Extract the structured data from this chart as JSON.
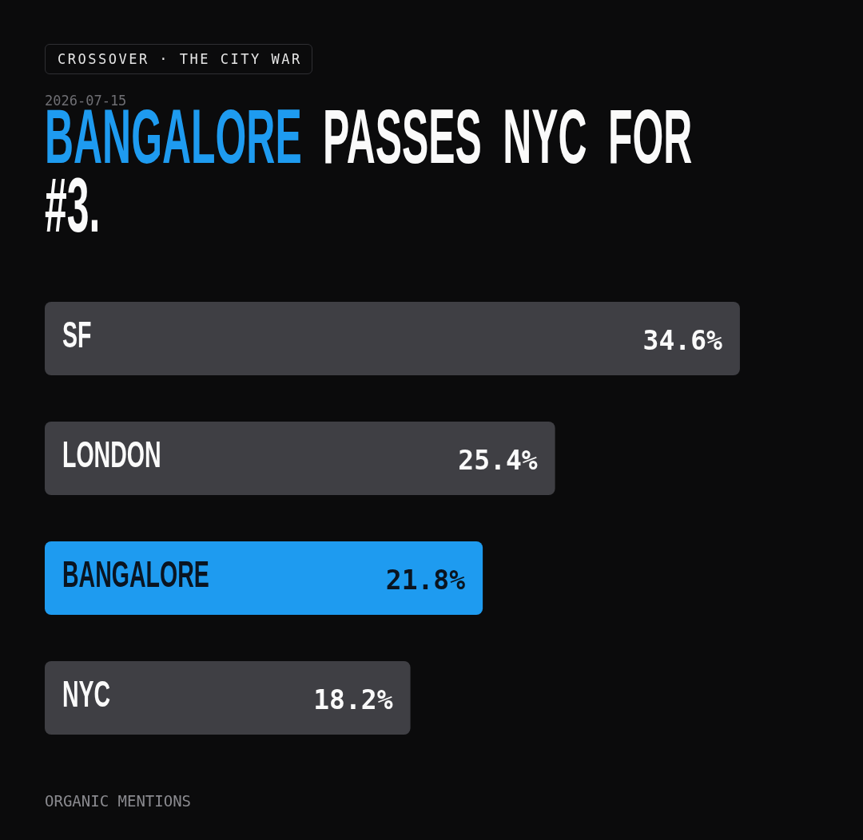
{
  "chart_data": {
    "type": "bar",
    "orientation": "horizontal",
    "title": "BANGALORE PASSES NYC FOR #3.",
    "subtitle": "2026-07-15",
    "annotations": [
      "CROSSOVER · THE CITY WAR",
      "ORGANIC MENTIONS"
    ],
    "categories": [
      "SF",
      "LONDON",
      "BANGALORE",
      "NYC"
    ],
    "values": [
      34.6,
      25.4,
      21.8,
      18.2
    ],
    "colors": [
      "#3f3f44",
      "#3f3f44",
      "#1e9bf0",
      "#3f3f44"
    ],
    "data_labels": true,
    "value_labels": [
      "34.6%",
      "25.4%",
      "21.8%",
      "18.2%"
    ],
    "legend": false,
    "tick_labels": false
  }
}
